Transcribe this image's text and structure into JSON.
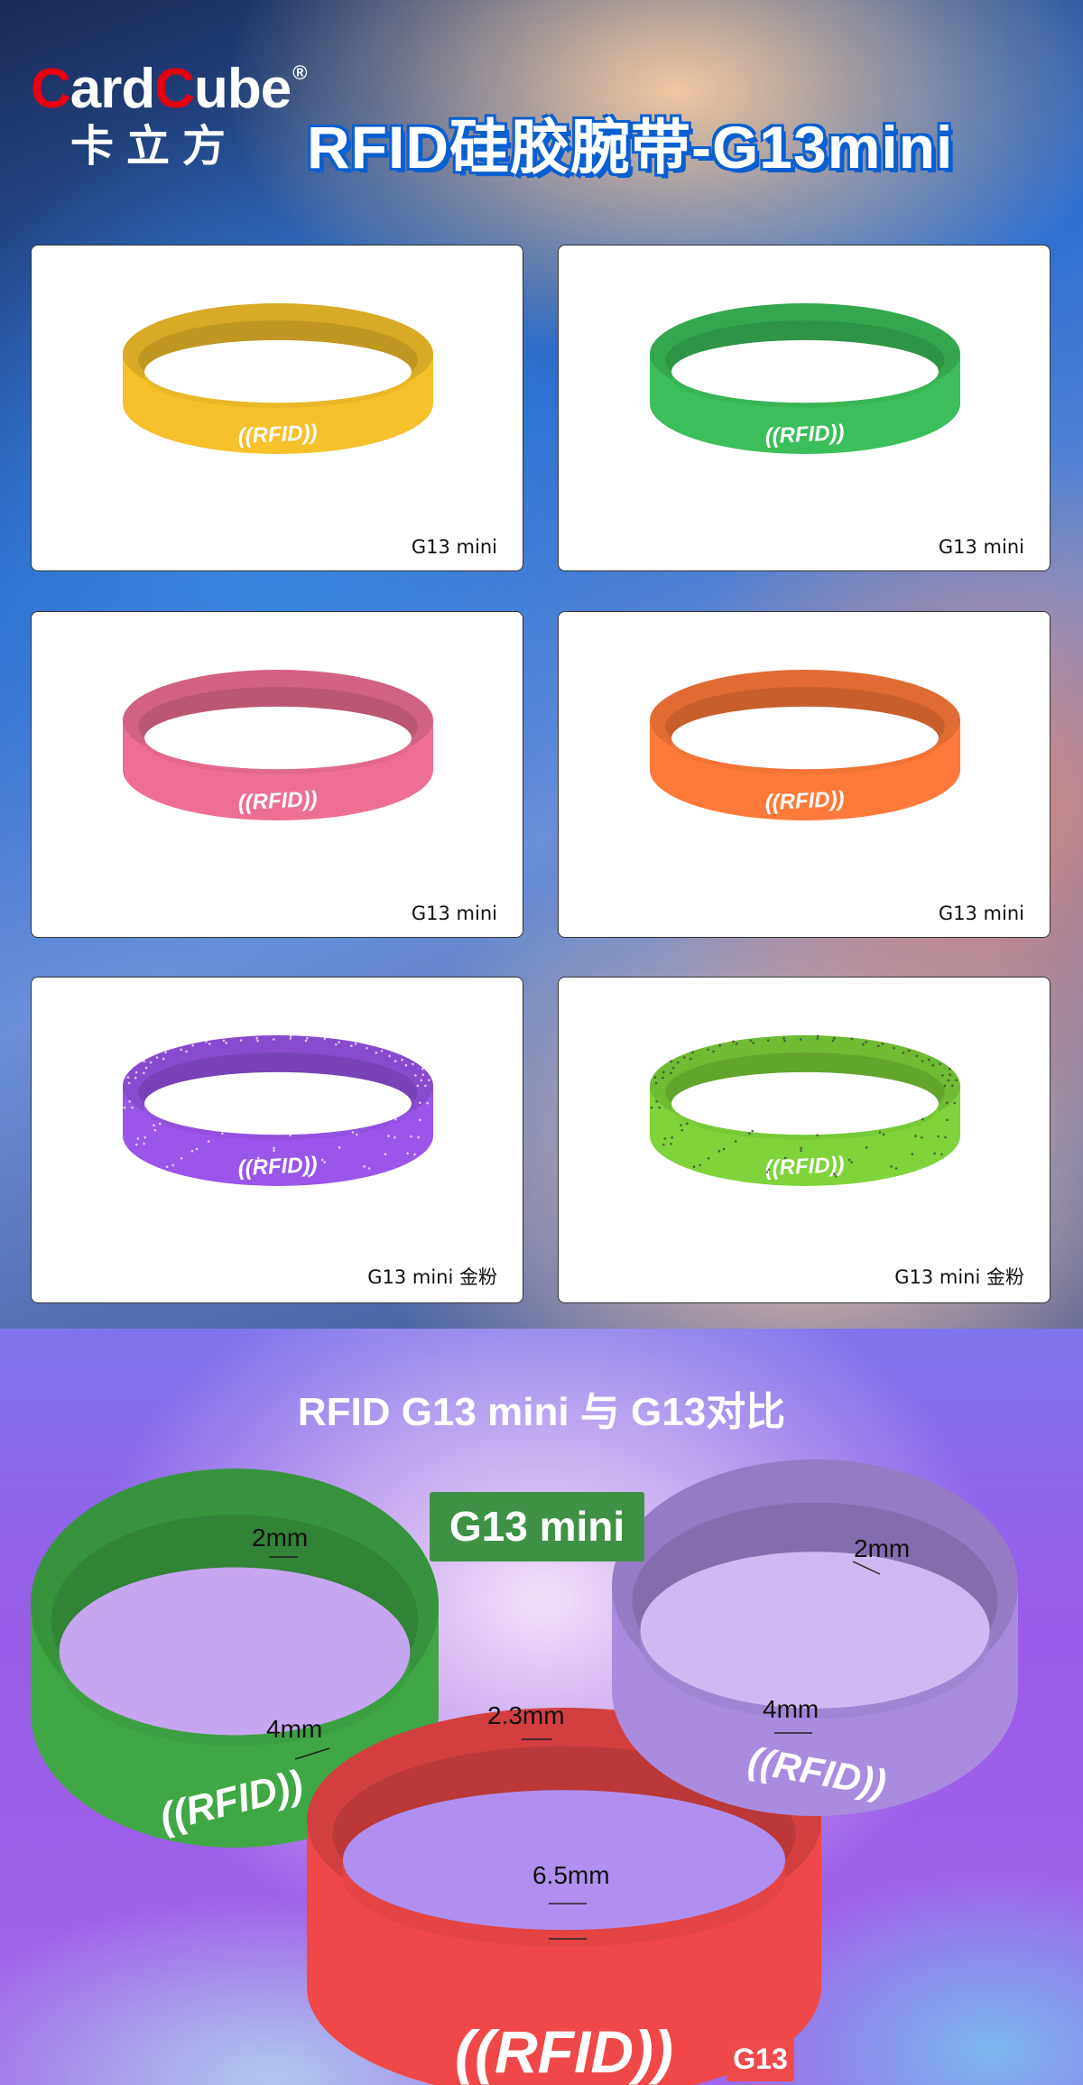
{
  "header": {
    "logo_en_1": "C",
    "logo_en_2": "ard",
    "logo_en_3": "C",
    "logo_en_4": "ube",
    "logo_reg": "®",
    "logo_cn": "卡立方",
    "title": "RFID硅胶腕带-G13mini"
  },
  "products": [
    {
      "caption": "G13 mini",
      "color": "#f6c12a",
      "imprint": "((RFID))"
    },
    {
      "caption": "G13 mini",
      "color": "#3cbf5a",
      "imprint": "((RFID))"
    },
    {
      "caption": "G13 mini",
      "color": "#ee6f93",
      "imprint": "((RFID))"
    },
    {
      "caption": "G13 mini",
      "color": "#ff7a3a",
      "imprint": "((RFID))"
    },
    {
      "caption": "G13 mini 金粉",
      "color": "#9a55ea",
      "imprint": "((RFID))",
      "glitter": true
    },
    {
      "caption": "G13 mini 金粉",
      "color": "#7ed43a",
      "imprint": "((RFID))",
      "glitter": true
    }
  ],
  "comparison": {
    "title": "RFID G13 mini 与 G13对比",
    "badge_mini": "G13 mini",
    "badge_g13": "G13",
    "dims": {
      "mini_green_thickness": "2mm",
      "mini_green_width": "4mm",
      "g13_thickness": "2.3mm",
      "mini_purple_thickness": "2mm",
      "mini_purple_width": "4mm",
      "g13_width": "6.5mm"
    },
    "colors": {
      "green": "#3fa845",
      "purple": "#a98ce0",
      "red": "#f04848"
    },
    "imprint": "((RFID))"
  }
}
